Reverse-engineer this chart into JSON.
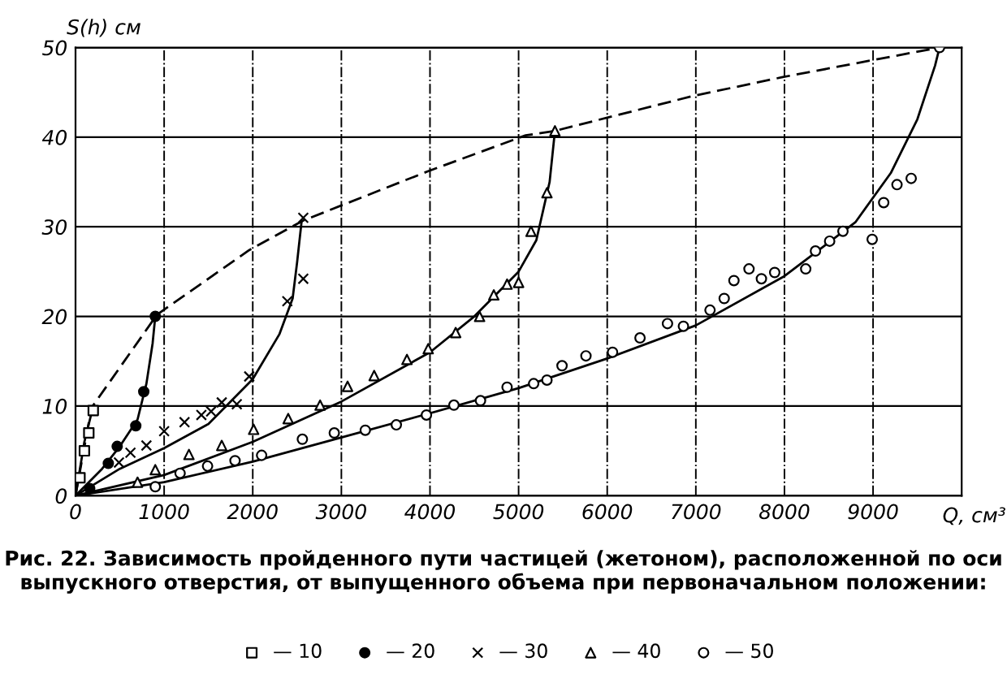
{
  "chart_data": {
    "type": "line",
    "xlabel": "Q, см³",
    "ylabel": "S(h) см",
    "xlim": [
      0,
      10000
    ],
    "ylim": [
      0,
      50
    ],
    "xticks": [
      0,
      1000,
      2000,
      3000,
      4000,
      5000,
      6000,
      7000,
      8000,
      9000
    ],
    "yticks": [
      0,
      10,
      20,
      30,
      40,
      50
    ],
    "grid": true,
    "legend": "bottom",
    "annotations": [
      "Рис. 22. Зависимость пройденного пути частицей (жетоном), расположенной по оси выпускного отверстия, от выпущенного объема при первоначальном положении:"
    ],
    "series": [
      {
        "line_style": "dashed",
        "marker": "none",
        "color": "#000000",
        "x": [
          0,
          180,
          920,
          1960,
          2570,
          3980,
          5080,
          5410,
          6970,
          7980,
          9750
        ],
        "values": [
          0,
          9.8,
          20.2,
          27.4,
          30.7,
          36.2,
          40.2,
          40.7,
          44.6,
          46.7,
          50
        ]
      },
      {
        "type": "line",
        "line_style": "solid",
        "marker": "none",
        "color": "#000000",
        "x": [
          0,
          50,
          100,
          150,
          200
        ],
        "values": [
          0,
          3,
          6,
          8,
          10
        ]
      },
      {
        "type": "line",
        "line_style": "solid",
        "marker": "none",
        "color": "#000000",
        "x": [
          0,
          300,
          500,
          700,
          800,
          870,
          900
        ],
        "values": [
          0,
          3,
          5.5,
          8.5,
          12.5,
          17,
          20
        ]
      },
      {
        "type": "line",
        "line_style": "solid",
        "marker": "none",
        "color": "#000000",
        "x": [
          0,
          500,
          1000,
          1500,
          2000,
          2300,
          2450,
          2500,
          2550
        ],
        "values": [
          0,
          3,
          5.3,
          8,
          13,
          18,
          22,
          26,
          30.5
        ]
      },
      {
        "type": "line",
        "line_style": "solid",
        "marker": "none",
        "color": "#000000",
        "x": [
          0,
          1000,
          2000,
          3000,
          4000,
          4500,
          5000,
          5200,
          5350,
          5410
        ],
        "values": [
          0,
          2.3,
          6,
          10.5,
          16,
          20,
          25,
          28.5,
          35,
          40.7
        ]
      },
      {
        "type": "line",
        "line_style": "solid",
        "marker": "none",
        "color": "#000000",
        "x": [
          0,
          1000,
          2000,
          3000,
          4000,
          5000,
          6000,
          7000,
          8000,
          8800,
          9200,
          9500,
          9700,
          9750
        ],
        "values": [
          0,
          1.5,
          3.8,
          6.5,
          9.2,
          12,
          15.3,
          19,
          24.5,
          30.5,
          36,
          42,
          48,
          50
        ]
      },
      {
        "type": "scatter",
        "name": "— 10",
        "marker": "square",
        "color": "#000000",
        "x": [
          50,
          100,
          150,
          200
        ],
        "values": [
          2,
          5,
          7,
          9.5
        ]
      },
      {
        "type": "scatter",
        "name": "— 20",
        "marker": "circle_filled",
        "color": "#000000",
        "x": [
          160,
          370,
          470,
          680,
          770,
          900
        ],
        "values": [
          0.8,
          3.6,
          5.5,
          7.8,
          11.6,
          20
        ]
      },
      {
        "type": "scatter",
        "name": "— 30",
        "marker": "cross",
        "color": "#000000",
        "x": [
          490,
          620,
          800,
          1000,
          1230,
          1420,
          1530,
          1650,
          1820,
          1960,
          2390,
          2570,
          2570
        ],
        "values": [
          3.7,
          4.8,
          5.6,
          7.2,
          8.2,
          9.0,
          9.4,
          10.4,
          10.2,
          13.3,
          21.7,
          24.2,
          31
        ]
      },
      {
        "type": "scatter",
        "name": "— 40",
        "marker": "triangle",
        "color": "#000000",
        "x": [
          700,
          900,
          1280,
          1650,
          2010,
          2400,
          2760,
          3070,
          3370,
          3740,
          3980,
          4290,
          4560,
          4720,
          4870,
          5000,
          5140,
          5320,
          5410
        ],
        "values": [
          1.5,
          2.9,
          4.6,
          5.6,
          7.4,
          8.6,
          10.1,
          12.2,
          13.4,
          15.2,
          16.4,
          18.2,
          20.0,
          22.4,
          23.6,
          23.8,
          29.5,
          33.8,
          40.7
        ]
      },
      {
        "type": "scatter",
        "name": "— 50",
        "marker": "circle",
        "color": "#000000",
        "x": [
          900,
          1180,
          1490,
          1800,
          2100,
          2560,
          2920,
          3270,
          3620,
          3960,
          4270,
          4570,
          4870,
          5170,
          5320,
          5490,
          5760,
          6060,
          6370,
          6680,
          6860,
          7160,
          7320,
          7430,
          7600,
          7740,
          7890,
          8240,
          8350,
          8510,
          8660,
          8990,
          9120,
          9270,
          9430,
          9750
        ],
        "values": [
          1.0,
          2.5,
          3.3,
          3.9,
          4.5,
          6.3,
          7.0,
          7.3,
          7.9,
          9.0,
          10.1,
          10.6,
          12.1,
          12.5,
          12.9,
          14.5,
          15.6,
          16.0,
          17.6,
          19.2,
          18.9,
          20.7,
          22.0,
          24.0,
          25.3,
          24.2,
          24.9,
          25.3,
          27.3,
          28.4,
          29.5,
          28.6,
          32.7,
          34.7,
          35.4,
          50
        ]
      }
    ]
  }
}
